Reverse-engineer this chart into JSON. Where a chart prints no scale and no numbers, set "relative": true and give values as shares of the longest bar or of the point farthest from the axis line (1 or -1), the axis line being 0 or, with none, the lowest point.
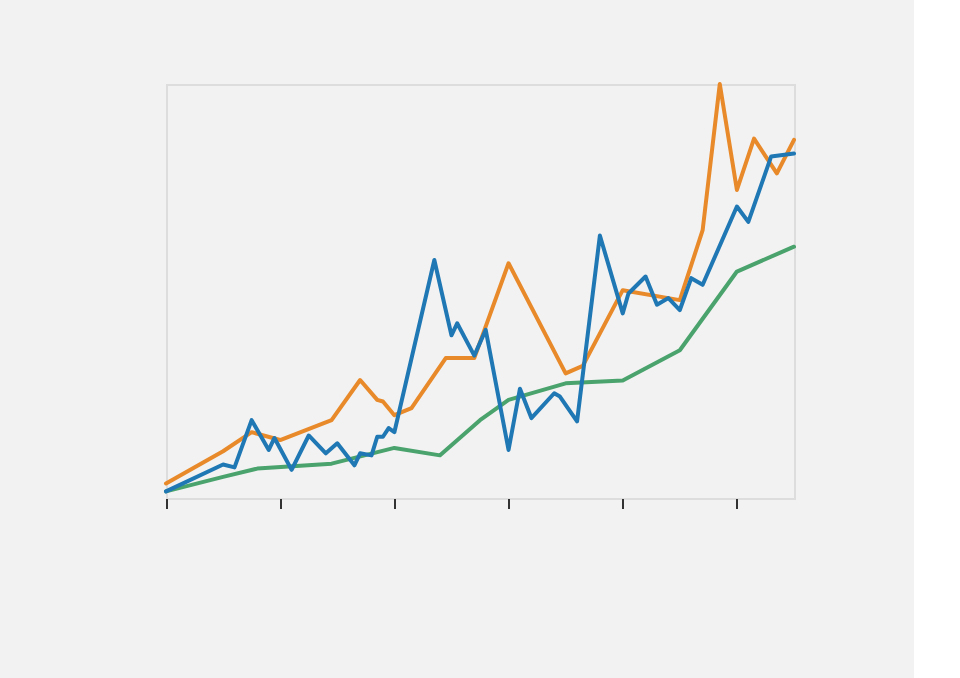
{
  "chart_data": {
    "type": "line",
    "relative": true,
    "grid": false,
    "marker": "none",
    "line_style": "solid",
    "categories": [
      null,
      null,
      null,
      null,
      null,
      null,
      null,
      null,
      null,
      null,
      null,
      null,
      null,
      null,
      null,
      null,
      null,
      null,
      null,
      null,
      null,
      null,
      null,
      null,
      null,
      null,
      null,
      null,
      null,
      null,
      null,
      null,
      null,
      null,
      null,
      null,
      null,
      null,
      null,
      null,
      null,
      null,
      null,
      null,
      null,
      null,
      null,
      null,
      null,
      null,
      null,
      null,
      null,
      null,
      null,
      null,
      null,
      null,
      null,
      null,
      null,
      null,
      null,
      null,
      null,
      null,
      null,
      null,
      null,
      null,
      null,
      null,
      null,
      null,
      null,
      null,
      null,
      null,
      null,
      null,
      null,
      null,
      null,
      null,
      null,
      null,
      null,
      null,
      null,
      null,
      null,
      null,
      null,
      null,
      null,
      null,
      null,
      null,
      null,
      null,
      null,
      null,
      null,
      null,
      null,
      null,
      null,
      null,
      null,
      null,
      null
    ],
    "series": [
      {
        "color": "#e8892a",
        "values": [
          0.035,
          null,
          null,
          null,
          null,
          null,
          null,
          null,
          null,
          null,
          0.113,
          null,
          null,
          null,
          null,
          0.159,
          null,
          null,
          null,
          null,
          0.14,
          null,
          null,
          null,
          null,
          null,
          null,
          null,
          null,
          0.188,
          null,
          null,
          null,
          null,
          0.285,
          null,
          null,
          0.237,
          0.233,
          null,
          0.2,
          null,
          null,
          0.217,
          null,
          null,
          null,
          null,
          null,
          0.338,
          null,
          null,
          null,
          null,
          0.338,
          null,
          null,
          null,
          null,
          null,
          0.567,
          null,
          null,
          null,
          null,
          null,
          null,
          null,
          null,
          null,
          0.301,
          null,
          null,
          0.319,
          null,
          null,
          null,
          null,
          null,
          null,
          0.502,
          null,
          null,
          null,
          null,
          null,
          null,
          null,
          null,
          null,
          0.478,
          null,
          null,
          null,
          0.647,
          null,
          null,
          1.0,
          null,
          null,
          0.744,
          null,
          null,
          0.868,
          null,
          null,
          null,
          0.784,
          null,
          null,
          0.865
        ]
      },
      {
        "color": "#4aa36c",
        "values": [
          0.016,
          null,
          null,
          null,
          null,
          null,
          null,
          null,
          null,
          null,
          0.051,
          null,
          null,
          null,
          null,
          null,
          0.071,
          null,
          null,
          null,
          null,
          null,
          null,
          null,
          null,
          null,
          null,
          null,
          null,
          0.083,
          null,
          null,
          null,
          null,
          null,
          null,
          null,
          null,
          null,
          null,
          0.121,
          null,
          null,
          null,
          null,
          null,
          null,
          null,
          0.103,
          null,
          null,
          null,
          null,
          null,
          null,
          0.188,
          null,
          null,
          null,
          null,
          0.237,
          null,
          null,
          null,
          null,
          null,
          null,
          null,
          null,
          null,
          0.277,
          null,
          null,
          null,
          null,
          null,
          null,
          null,
          null,
          null,
          0.284,
          null,
          null,
          null,
          null,
          null,
          null,
          null,
          null,
          null,
          0.357,
          null,
          null,
          null,
          null,
          null,
          null,
          null,
          null,
          null,
          0.547,
          null,
          null,
          null,
          null,
          null,
          null,
          null,
          null,
          null,
          0.607
        ]
      },
      {
        "color": "#1f77b4",
        "values": [
          0.016,
          null,
          null,
          null,
          null,
          null,
          null,
          null,
          null,
          null,
          0.081,
          null,
          0.074,
          null,
          null,
          0.188,
          null,
          null,
          0.116,
          0.145,
          null,
          null,
          0.068,
          null,
          null,
          0.151,
          null,
          null,
          0.108,
          null,
          0.132,
          null,
          null,
          0.079,
          0.108,
          null,
          0.103,
          0.148,
          0.148,
          0.169,
          0.159,
          null,
          null,
          null,
          null,
          null,
          null,
          0.575,
          null,
          null,
          0.393,
          0.422,
          null,
          null,
          0.344,
          null,
          0.406,
          null,
          null,
          null,
          0.116,
          null,
          0.264,
          null,
          0.193,
          null,
          null,
          null,
          0.253,
          0.245,
          null,
          null,
          0.185,
          null,
          null,
          null,
          0.634,
          null,
          null,
          null,
          0.446,
          0.494,
          null,
          null,
          0.535,
          null,
          0.467,
          null,
          0.483,
          null,
          0.454,
          null,
          0.531,
          null,
          0.515,
          null,
          null,
          null,
          null,
          null,
          0.704,
          null,
          0.667,
          null,
          null,
          null,
          0.825,
          null,
          null,
          null,
          0.832
        ]
      }
    ]
  }
}
